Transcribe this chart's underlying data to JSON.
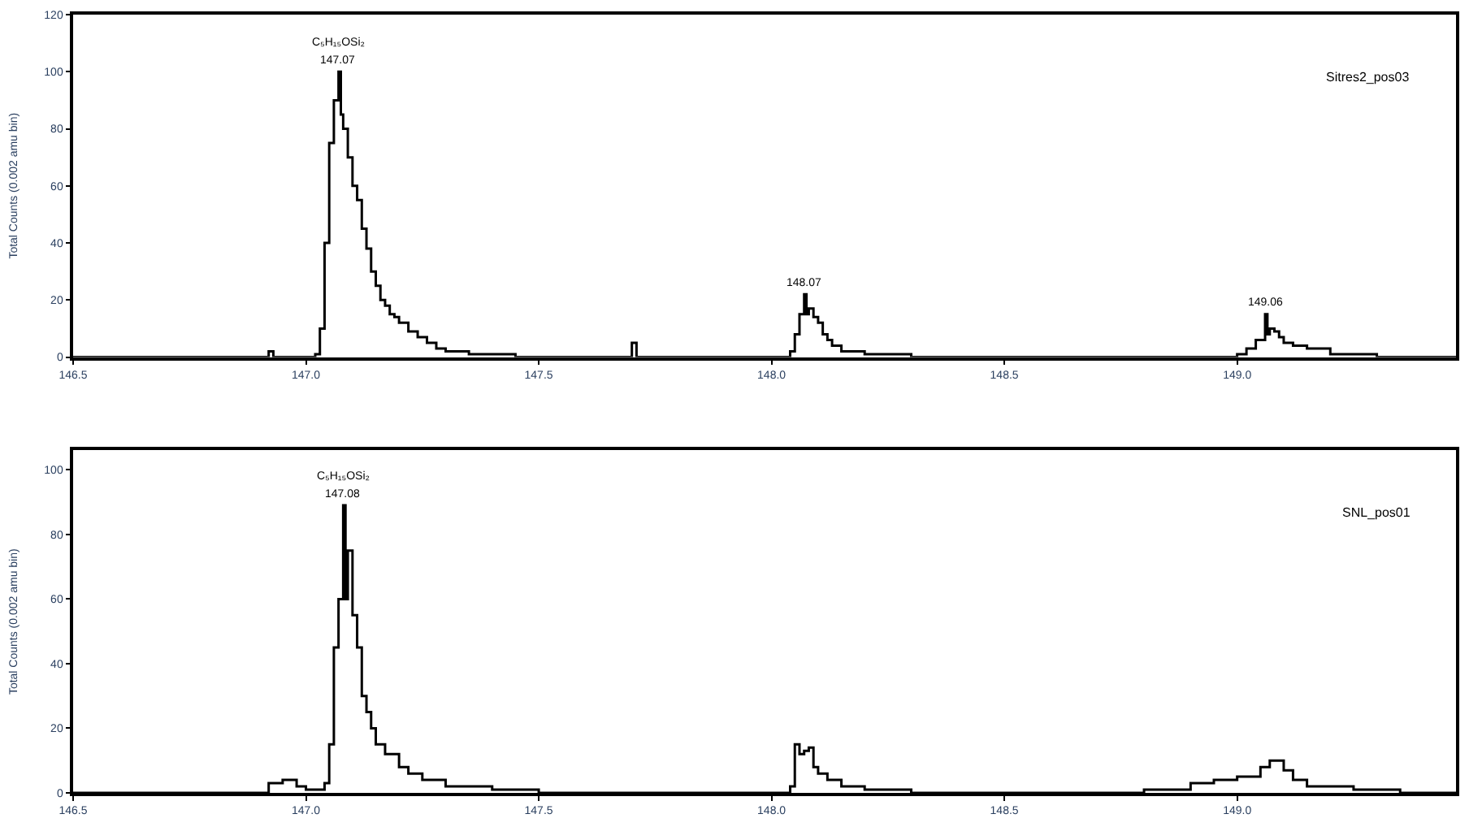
{
  "chart_data": [
    {
      "type": "step",
      "ylabel": "Total Counts (0.002 amu bin)",
      "xlim": [
        146.5,
        149.47
      ],
      "xticks": [
        {
          "value": 146.5,
          "label": "146.5"
        },
        {
          "value": 147.0,
          "label": "147.0"
        },
        {
          "value": 147.5,
          "label": "147.5"
        },
        {
          "value": 148.0,
          "label": "148.0"
        },
        {
          "value": 148.5,
          "label": "148.5"
        },
        {
          "value": 149.0,
          "label": "149.0"
        }
      ],
      "ylim": [
        0,
        120
      ],
      "yticks": [
        0,
        20,
        40,
        60,
        80,
        100,
        120
      ],
      "annotations": [
        {
          "text": "147.07",
          "x": 147.07,
          "y": 100
        },
        {
          "text": "C₅H₁₅OSi₂",
          "x": 147.07,
          "y": 100
        },
        {
          "text": "148.07",
          "x": 148.07,
          "y": 22
        },
        {
          "text": "149.06",
          "x": 149.06,
          "y": 15
        }
      ],
      "series": [
        {
          "name": "Sitres2_pos03",
          "color": "#000000",
          "x": [
            146.5,
            146.9,
            146.92,
            146.93,
            147.0,
            147.02,
            147.03,
            147.04,
            147.05,
            147.06,
            147.07,
            147.075,
            147.08,
            147.09,
            147.1,
            147.11,
            147.12,
            147.13,
            147.14,
            147.15,
            147.16,
            147.17,
            147.18,
            147.19,
            147.2,
            147.22,
            147.24,
            147.26,
            147.28,
            147.3,
            147.35,
            147.4,
            147.45,
            147.7,
            147.71,
            148.0,
            148.04,
            148.05,
            148.06,
            148.07,
            148.075,
            148.08,
            148.09,
            148.1,
            148.11,
            148.12,
            148.13,
            148.15,
            148.2,
            148.3,
            148.9,
            149.0,
            149.02,
            149.04,
            149.06,
            149.065,
            149.07,
            149.08,
            149.09,
            149.1,
            149.12,
            149.15,
            149.2,
            149.3,
            149.47
          ],
          "values": [
            0,
            0,
            2,
            0,
            0,
            1,
            10,
            40,
            75,
            90,
            100,
            85,
            80,
            70,
            60,
            55,
            45,
            38,
            30,
            25,
            20,
            18,
            15,
            14,
            12,
            9,
            7,
            5,
            3,
            2,
            1,
            1,
            0,
            5,
            0,
            0,
            2,
            8,
            15,
            22,
            15,
            17,
            14,
            12,
            8,
            6,
            4,
            2,
            1,
            0,
            0,
            1,
            3,
            6,
            15,
            8,
            10,
            9,
            7,
            5,
            4,
            3,
            1,
            0,
            0
          ]
        }
      ]
    },
    {
      "type": "step",
      "ylabel": "Total Counts (0.002 amu bin)",
      "xlim": [
        146.5,
        149.47
      ],
      "xticks": [
        {
          "value": 146.5,
          "label": "146.5"
        },
        {
          "value": 147.0,
          "label": "147.0"
        },
        {
          "value": 147.5,
          "label": "147.5"
        },
        {
          "value": 148.0,
          "label": "148.0"
        },
        {
          "value": 148.5,
          "label": "148.5"
        },
        {
          "value": 149.0,
          "label": "149.0"
        }
      ],
      "ylim": [
        0,
        106
      ],
      "yticks": [
        0,
        20,
        40,
        60,
        80,
        100
      ],
      "annotations": [
        {
          "text": "147.08",
          "x": 147.08,
          "y": 89
        },
        {
          "text": "C₅H₁₅OSi₂",
          "x": 147.08,
          "y": 89
        }
      ],
      "series": [
        {
          "name": "SNL_pos01",
          "color": "#000000",
          "x": [
            146.5,
            146.9,
            146.92,
            146.95,
            146.98,
            147.0,
            147.04,
            147.05,
            147.06,
            147.07,
            147.08,
            147.085,
            147.09,
            147.1,
            147.11,
            147.12,
            147.13,
            147.14,
            147.15,
            147.17,
            147.2,
            147.22,
            147.25,
            147.3,
            147.4,
            147.5,
            148.0,
            148.04,
            148.05,
            148.06,
            148.07,
            148.08,
            148.09,
            148.1,
            148.12,
            148.15,
            148.2,
            148.3,
            148.8,
            148.9,
            148.95,
            149.0,
            149.05,
            149.07,
            149.1,
            149.12,
            149.15,
            149.25,
            149.35,
            149.47
          ],
          "values": [
            0,
            0,
            3,
            4,
            2,
            1,
            3,
            15,
            45,
            60,
            89,
            60,
            75,
            55,
            45,
            30,
            25,
            20,
            15,
            12,
            8,
            6,
            4,
            2,
            1,
            0,
            0,
            2,
            15,
            12,
            13,
            14,
            8,
            6,
            4,
            2,
            1,
            0,
            1,
            3,
            4,
            5,
            8,
            10,
            7,
            4,
            2,
            1,
            0,
            0
          ]
        }
      ]
    }
  ]
}
